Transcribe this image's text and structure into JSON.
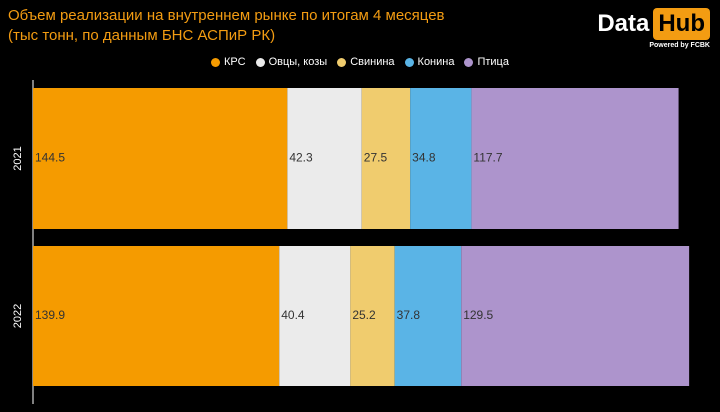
{
  "header": {
    "title_line1": "Объем реализации на внутреннем рынке по итогам 4 месяцев",
    "title_line2": "(тыс тонн, по данным БНС АСПиР РК)"
  },
  "logo": {
    "data_text": "Data",
    "hub_text": "Hub",
    "powered_text": "Powered by FCBK"
  },
  "chart_data": {
    "type": "bar",
    "orientation": "horizontal",
    "stacked": true,
    "title": "Объем реализации на внутреннем рынке по итогам 4 месяцев",
    "subtitle": "(тыс тонн, по данным БНС АСПиР РК)",
    "categories": [
      "2021",
      "2022"
    ],
    "legend_position": "top",
    "grid": false,
    "series": [
      {
        "name": "КРС",
        "values": [
          144.5,
          139.9
        ],
        "color": "#f59b00"
      },
      {
        "name": "Овцы, козы",
        "values": [
          42.3,
          40.4
        ],
        "color": "#ebebeb"
      },
      {
        "name": "Свинина",
        "values": [
          27.5,
          25.2
        ],
        "color": "#f0cc6e"
      },
      {
        "name": "Конина",
        "values": [
          34.8,
          37.8
        ],
        "color": "#5ab4e6"
      },
      {
        "name": "Птица",
        "values": [
          117.7,
          129.5
        ],
        "color": "#ad94cc"
      }
    ]
  }
}
